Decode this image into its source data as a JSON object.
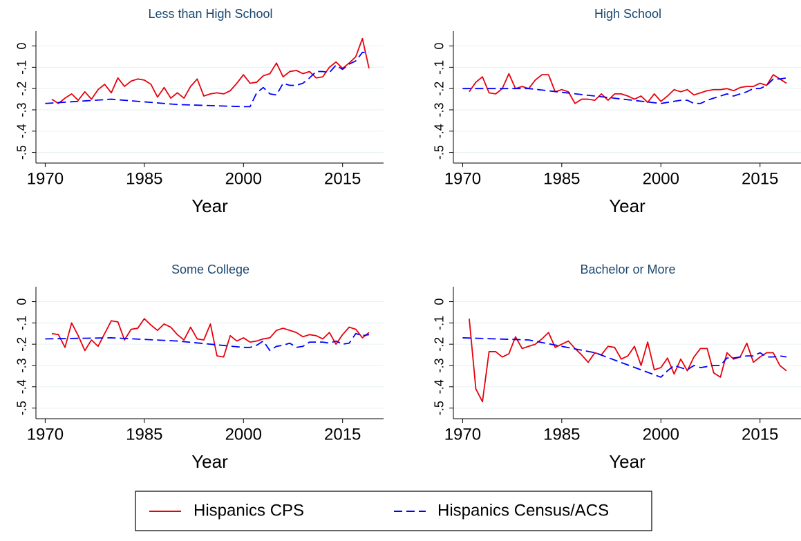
{
  "chart_data": [
    {
      "type": "line",
      "title": "Less than High School",
      "xlabel": "Year",
      "xlim": [
        1968.6,
        2021.2
      ],
      "ylim": [
        -0.55,
        0.07
      ],
      "xticks": [
        1970,
        1985,
        2000,
        2015
      ],
      "yticks": [
        {
          "value": -0.5,
          "label": "-.5"
        },
        {
          "value": -0.4,
          "label": "-.4"
        },
        {
          "value": -0.3,
          "label": "-.3"
        },
        {
          "value": -0.2,
          "label": "-.2"
        },
        {
          "value": -0.1,
          "label": "-.1"
        },
        0
      ],
      "grid": true,
      "series": [
        {
          "name": "Hispanics CPS",
          "color": "#e8000b",
          "dash": false,
          "x": [
            1971,
            1972,
            1973,
            1974,
            1975,
            1976,
            1977,
            1978,
            1979,
            1980,
            1981,
            1982,
            1983,
            1984,
            1985,
            1986,
            1987,
            1988,
            1989,
            1990,
            1991,
            1992,
            1993,
            1994,
            1995,
            1996,
            1997,
            1998,
            1999,
            2000,
            2001,
            2002,
            2003,
            2004,
            2005,
            2006,
            2007,
            2008,
            2009,
            2010,
            2011,
            2012,
            2013,
            2014,
            2015,
            2016,
            2017,
            2018,
            2019
          ],
          "values": [
            -0.25,
            -0.27,
            -0.245,
            -0.225,
            -0.255,
            -0.215,
            -0.25,
            -0.205,
            -0.18,
            -0.22,
            -0.15,
            -0.19,
            -0.165,
            -0.155,
            -0.16,
            -0.18,
            -0.24,
            -0.195,
            -0.245,
            -0.22,
            -0.245,
            -0.19,
            -0.155,
            -0.235,
            -0.225,
            -0.22,
            -0.225,
            -0.21,
            -0.175,
            -0.135,
            -0.175,
            -0.17,
            -0.14,
            -0.13,
            -0.08,
            -0.145,
            -0.12,
            -0.115,
            -0.13,
            -0.12,
            -0.15,
            -0.145,
            -0.1,
            -0.075,
            -0.105,
            -0.08,
            -0.05,
            0.035,
            -0.105
          ]
        },
        {
          "name": "Hispanics Census/ACS",
          "color": "#0000ff",
          "dash": true,
          "x": [
            1970,
            1980,
            1990,
            2000,
            2001,
            2002,
            2003,
            2004,
            2005,
            2006,
            2007,
            2008,
            2009,
            2010,
            2011,
            2012,
            2013,
            2014,
            2015,
            2016,
            2017,
            2018,
            2019
          ],
          "values": [
            -0.27,
            -0.25,
            -0.275,
            -0.285,
            -0.285,
            -0.22,
            -0.195,
            -0.225,
            -0.23,
            -0.175,
            -0.185,
            -0.185,
            -0.175,
            -0.15,
            -0.12,
            -0.12,
            -0.125,
            -0.09,
            -0.11,
            -0.085,
            -0.07,
            -0.03,
            -0.03
          ]
        }
      ]
    },
    {
      "type": "line",
      "title": "High School",
      "xlabel": "Year",
      "xlim": [
        1968.6,
        2021.2
      ],
      "ylim": [
        -0.55,
        0.07
      ],
      "xticks": [
        1970,
        1985,
        2000,
        2015
      ],
      "yticks": [
        {
          "value": -0.5,
          "label": "-.5"
        },
        {
          "value": -0.4,
          "label": "-.4"
        },
        {
          "value": -0.3,
          "label": "-.3"
        },
        {
          "value": -0.2,
          "label": "-.2"
        },
        {
          "value": -0.1,
          "label": "-.1"
        },
        0
      ],
      "grid": true,
      "series": [
        {
          "name": "Hispanics CPS",
          "color": "#e8000b",
          "dash": false,
          "x": [
            1971,
            1972,
            1973,
            1974,
            1975,
            1976,
            1977,
            1978,
            1979,
            1980,
            1981,
            1982,
            1983,
            1984,
            1985,
            1986,
            1987,
            1988,
            1989,
            1990,
            1991,
            1992,
            1993,
            1994,
            1995,
            1996,
            1997,
            1998,
            1999,
            2000,
            2001,
            2002,
            2003,
            2004,
            2005,
            2006,
            2007,
            2008,
            2009,
            2010,
            2011,
            2012,
            2013,
            2014,
            2015,
            2016,
            2017,
            2018,
            2019
          ],
          "values": [
            -0.215,
            -0.17,
            -0.145,
            -0.22,
            -0.225,
            -0.2,
            -0.13,
            -0.2,
            -0.19,
            -0.2,
            -0.16,
            -0.135,
            -0.135,
            -0.215,
            -0.205,
            -0.215,
            -0.27,
            -0.25,
            -0.25,
            -0.255,
            -0.225,
            -0.255,
            -0.225,
            -0.225,
            -0.235,
            -0.25,
            -0.235,
            -0.265,
            -0.225,
            -0.26,
            -0.235,
            -0.205,
            -0.215,
            -0.205,
            -0.23,
            -0.22,
            -0.21,
            -0.205,
            -0.205,
            -0.2,
            -0.21,
            -0.195,
            -0.19,
            -0.19,
            -0.175,
            -0.185,
            -0.135,
            -0.155,
            -0.175
          ]
        },
        {
          "name": "Hispanics Census/ACS",
          "color": "#0000ff",
          "dash": true,
          "x": [
            1970,
            1980,
            1990,
            2000,
            2001,
            2002,
            2003,
            2004,
            2005,
            2006,
            2007,
            2008,
            2009,
            2010,
            2011,
            2012,
            2013,
            2014,
            2015,
            2016,
            2017,
            2018,
            2019
          ],
          "values": [
            -0.2,
            -0.2,
            -0.235,
            -0.27,
            -0.265,
            -0.26,
            -0.255,
            -0.255,
            -0.27,
            -0.27,
            -0.255,
            -0.245,
            -0.235,
            -0.225,
            -0.235,
            -0.225,
            -0.215,
            -0.2,
            -0.2,
            -0.185,
            -0.155,
            -0.155,
            -0.15
          ]
        }
      ]
    },
    {
      "type": "line",
      "title": "Some College",
      "xlabel": "Year",
      "xlim": [
        1968.6,
        2021.2
      ],
      "ylim": [
        -0.55,
        0.07
      ],
      "xticks": [
        1970,
        1985,
        2000,
        2015
      ],
      "yticks": [
        {
          "value": -0.5,
          "label": "-.5"
        },
        {
          "value": -0.4,
          "label": "-.4"
        },
        {
          "value": -0.3,
          "label": "-.3"
        },
        {
          "value": -0.2,
          "label": "-.2"
        },
        {
          "value": -0.1,
          "label": "-.1"
        },
        0
      ],
      "grid": true,
      "series": [
        {
          "name": "Hispanics CPS",
          "color": "#e8000b",
          "dash": false,
          "x": [
            1971,
            1972,
            1973,
            1974,
            1975,
            1976,
            1977,
            1978,
            1979,
            1980,
            1981,
            1982,
            1983,
            1984,
            1985,
            1986,
            1987,
            1988,
            1989,
            1990,
            1991,
            1992,
            1993,
            1994,
            1995,
            1996,
            1997,
            1998,
            1999,
            2000,
            2001,
            2002,
            2003,
            2004,
            2005,
            2006,
            2007,
            2008,
            2009,
            2010,
            2011,
            2012,
            2013,
            2014,
            2015,
            2016,
            2017,
            2018,
            2019
          ],
          "values": [
            -0.15,
            -0.155,
            -0.215,
            -0.1,
            -0.16,
            -0.23,
            -0.18,
            -0.21,
            -0.15,
            -0.09,
            -0.095,
            -0.18,
            -0.13,
            -0.125,
            -0.08,
            -0.11,
            -0.135,
            -0.105,
            -0.12,
            -0.155,
            -0.18,
            -0.12,
            -0.175,
            -0.18,
            -0.105,
            -0.255,
            -0.26,
            -0.16,
            -0.185,
            -0.17,
            -0.19,
            -0.185,
            -0.175,
            -0.17,
            -0.135,
            -0.125,
            -0.135,
            -0.145,
            -0.165,
            -0.155,
            -0.16,
            -0.175,
            -0.145,
            -0.2,
            -0.155,
            -0.12,
            -0.13,
            -0.17,
            -0.145
          ]
        },
        {
          "name": "Hispanics Census/ACS",
          "color": "#0000ff",
          "dash": true,
          "x": [
            1970,
            1980,
            1990,
            2000,
            2001,
            2002,
            2003,
            2004,
            2005,
            2006,
            2007,
            2008,
            2009,
            2010,
            2011,
            2012,
            2013,
            2014,
            2015,
            2016,
            2017,
            2018,
            2019
          ],
          "values": [
            -0.175,
            -0.17,
            -0.185,
            -0.215,
            -0.215,
            -0.205,
            -0.185,
            -0.23,
            -0.21,
            -0.205,
            -0.195,
            -0.215,
            -0.21,
            -0.19,
            -0.19,
            -0.19,
            -0.195,
            -0.185,
            -0.2,
            -0.195,
            -0.15,
            -0.16,
            -0.155
          ]
        }
      ]
    },
    {
      "type": "line",
      "title": "Bachelor or More",
      "xlabel": "Year",
      "xlim": [
        1968.6,
        2021.2
      ],
      "ylim": [
        -0.55,
        0.07
      ],
      "xticks": [
        1970,
        1985,
        2000,
        2015
      ],
      "yticks": [
        {
          "value": -0.5,
          "label": "-.5"
        },
        {
          "value": -0.4,
          "label": "-.4"
        },
        {
          "value": -0.3,
          "label": "-.3"
        },
        {
          "value": -0.2,
          "label": "-.2"
        },
        {
          "value": -0.1,
          "label": "-.1"
        },
        0
      ],
      "grid": true,
      "series": [
        {
          "name": "Hispanics CPS",
          "color": "#e8000b",
          "dash": false,
          "x": [
            1971,
            1972,
            1973,
            1974,
            1975,
            1976,
            1977,
            1978,
            1979,
            1980,
            1981,
            1982,
            1983,
            1984,
            1985,
            1986,
            1987,
            1988,
            1989,
            1990,
            1991,
            1992,
            1993,
            1994,
            1995,
            1996,
            1997,
            1998,
            1999,
            2000,
            2001,
            2002,
            2003,
            2004,
            2005,
            2006,
            2007,
            2008,
            2009,
            2010,
            2011,
            2012,
            2013,
            2014,
            2015,
            2016,
            2017,
            2018,
            2019
          ],
          "values": [
            -0.08,
            -0.41,
            -0.47,
            -0.235,
            -0.235,
            -0.26,
            -0.245,
            -0.165,
            -0.22,
            -0.21,
            -0.2,
            -0.175,
            -0.145,
            -0.215,
            -0.2,
            -0.185,
            -0.22,
            -0.25,
            -0.285,
            -0.24,
            -0.25,
            -0.21,
            -0.215,
            -0.27,
            -0.255,
            -0.21,
            -0.3,
            -0.19,
            -0.32,
            -0.31,
            -0.265,
            -0.34,
            -0.27,
            -0.325,
            -0.26,
            -0.22,
            -0.22,
            -0.335,
            -0.355,
            -0.24,
            -0.27,
            -0.26,
            -0.195,
            -0.285,
            -0.26,
            -0.24,
            -0.24,
            -0.3,
            -0.325
          ]
        },
        {
          "name": "Hispanics Census/ACS",
          "color": "#0000ff",
          "dash": true,
          "x": [
            1970,
            1980,
            1990,
            2000,
            2001,
            2002,
            2003,
            2004,
            2005,
            2006,
            2007,
            2008,
            2009,
            2010,
            2011,
            2012,
            2013,
            2014,
            2015,
            2016,
            2017,
            2018,
            2019
          ],
          "values": [
            -0.17,
            -0.18,
            -0.24,
            -0.355,
            -0.325,
            -0.3,
            -0.31,
            -0.32,
            -0.3,
            -0.31,
            -0.305,
            -0.3,
            -0.3,
            -0.265,
            -0.265,
            -0.26,
            -0.255,
            -0.255,
            -0.24,
            -0.26,
            -0.26,
            -0.255,
            -0.26
          ]
        }
      ]
    }
  ]
}
